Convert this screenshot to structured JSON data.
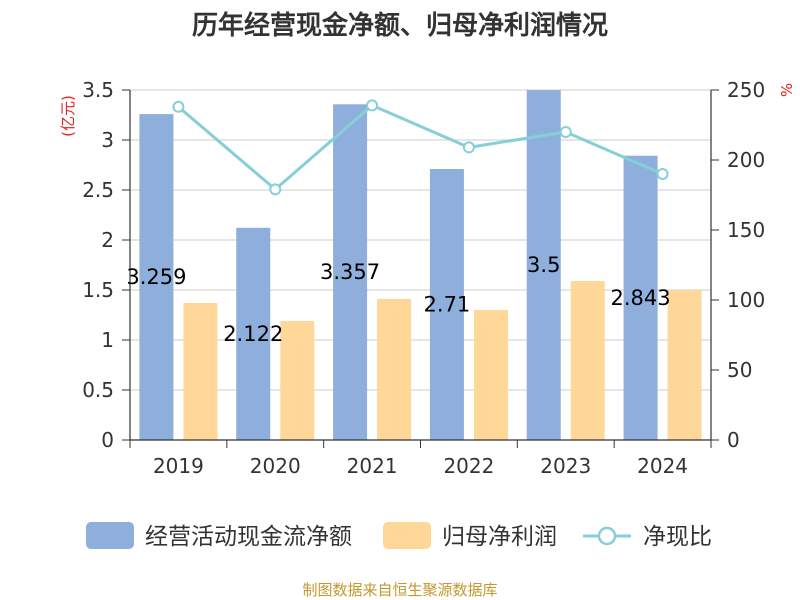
{
  "footer": "制图数据来自恒生聚源数据库",
  "colors": {
    "bar_cash_flow": "#8eaedc",
    "bar_net_profit": "#ffd798",
    "line_ratio": "#86cfd8",
    "axis_name": "#e0221c",
    "footer": "#c4972f",
    "grid": "#cccccc",
    "axis": "#333333"
  },
  "chart_data": {
    "type": "bar",
    "title": "历年经营现金净额、归母净利润情况",
    "categories": [
      "2019",
      "2020",
      "2021",
      "2022",
      "2023",
      "2024"
    ],
    "series": [
      {
        "name": "经营活动现金流净额",
        "type": "bar",
        "y_axis": "left",
        "values": [
          3.259,
          2.122,
          3.357,
          2.71,
          3.5,
          2.843
        ],
        "show_data_labels": true
      },
      {
        "name": "归母净利润",
        "type": "bar",
        "y_axis": "left",
        "values": [
          1.37,
          1.19,
          1.41,
          1.3,
          1.59,
          1.5
        ],
        "show_data_labels": false
      },
      {
        "name": "净现比",
        "type": "line",
        "y_axis": "right",
        "values": [
          238,
          179,
          239,
          209,
          220,
          190
        ],
        "show_data_labels": false
      }
    ],
    "ylabel": "(亿元)",
    "y2label": "%",
    "ylim": [
      0,
      3.5
    ],
    "y2lim": [
      0,
      250
    ],
    "yticks": [
      0,
      0.5,
      1,
      1.5,
      2,
      2.5,
      3,
      3.5
    ],
    "y2ticks": [
      0,
      50,
      100,
      150,
      200,
      250
    ],
    "grid": true,
    "legend": "bottom"
  }
}
